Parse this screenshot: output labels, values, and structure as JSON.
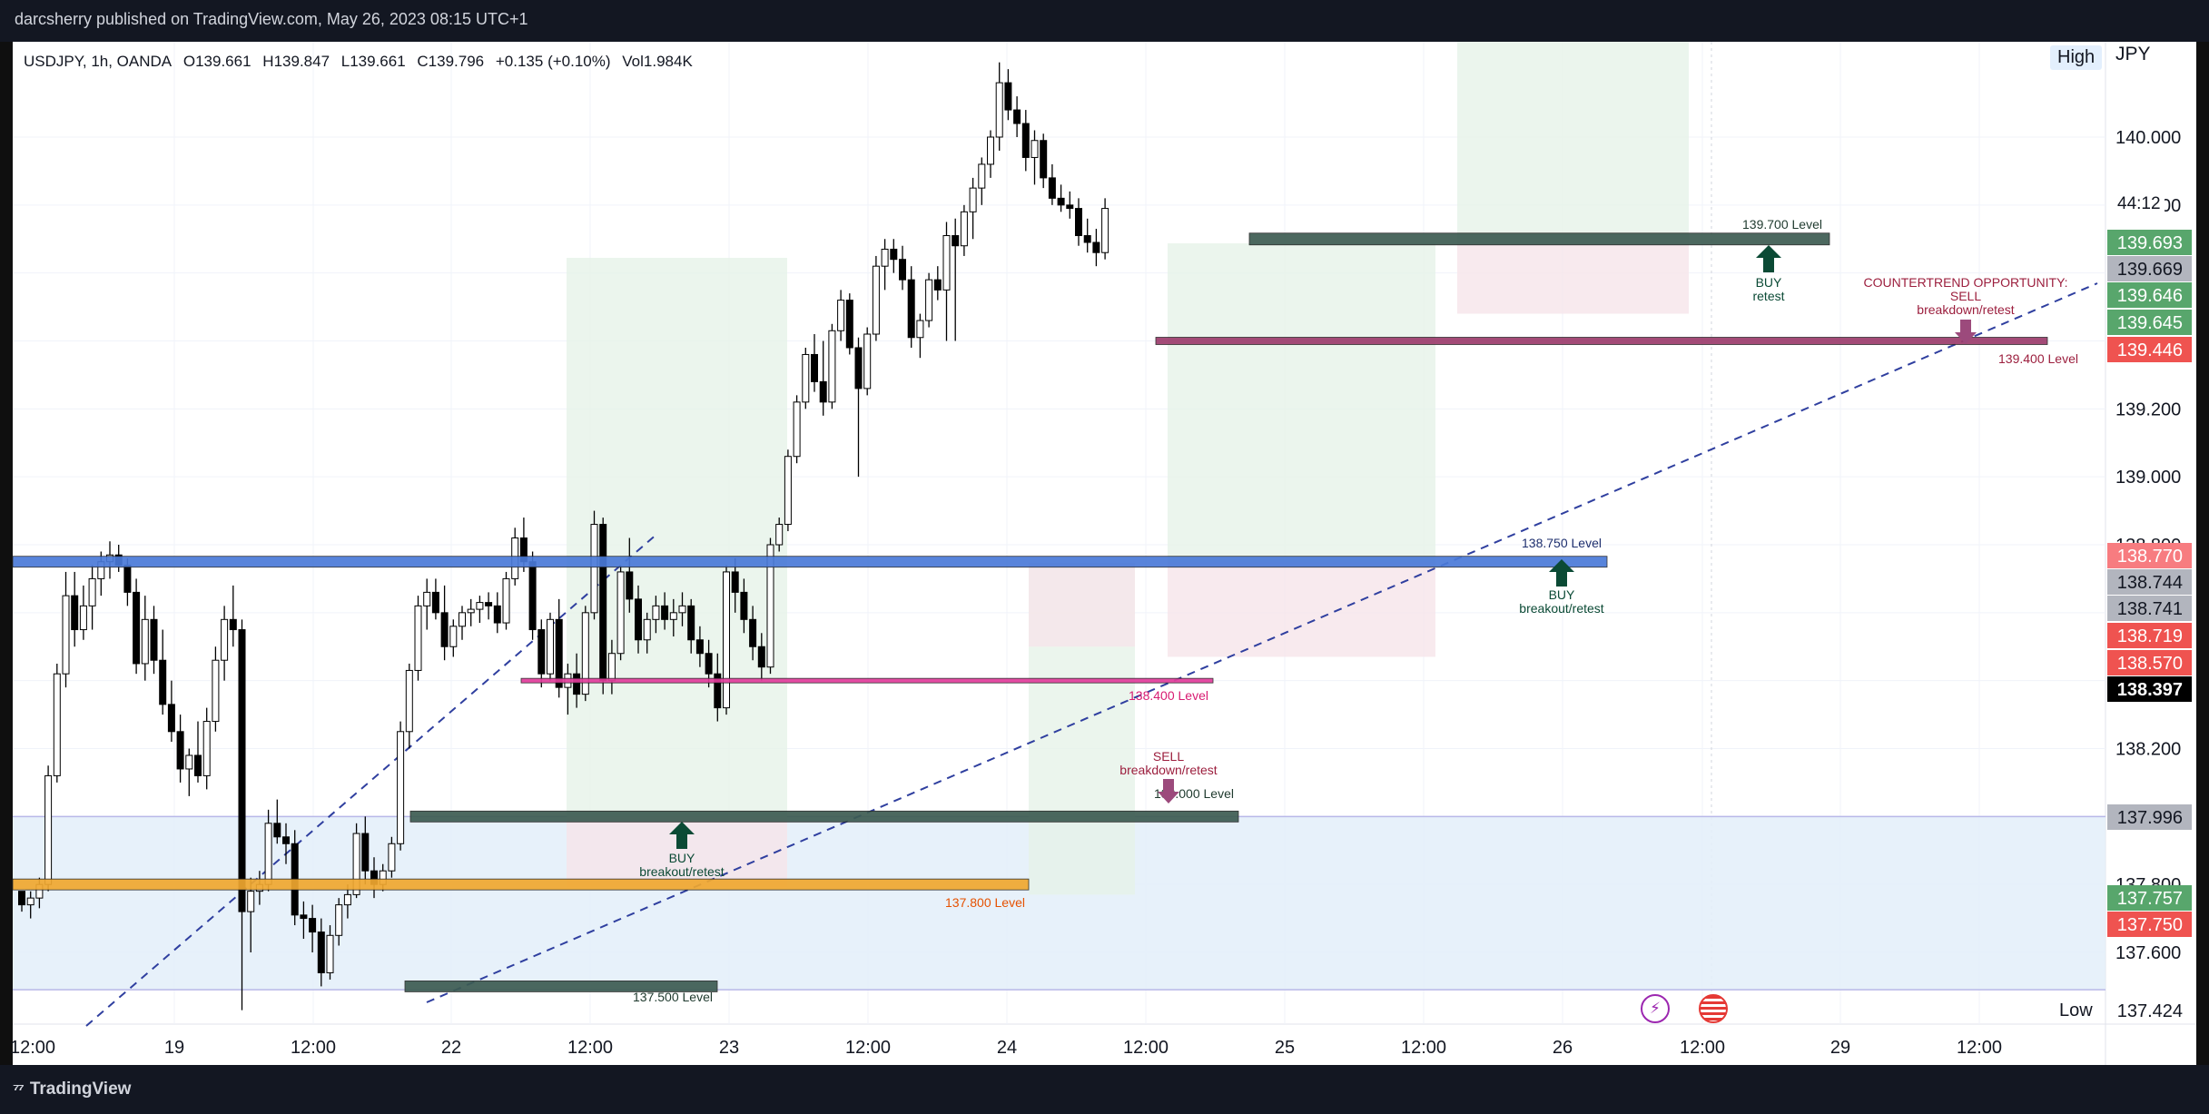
{
  "header": {
    "publisher_line": "darcsherry published on TradingView.com, May 26, 2023 08:15 UTC+1"
  },
  "legend": {
    "symbol": "USDJPY, 1h, OANDA",
    "open": "O139.661",
    "high": "H139.847",
    "low": "L139.661",
    "close": "C139.796",
    "change": "+0.135 (+0.10%)",
    "volume": "Vol1.984K"
  },
  "price_scale": {
    "currency": "JPY",
    "high_tag": "High",
    "low_tag": "Low",
    "countdown": "44:12"
  },
  "footer": {
    "brand": "TradingView"
  },
  "icons": [
    "lightning-icon",
    "us-flag-icon"
  ],
  "colors": {
    "up_candle": "#ffffff",
    "down_candle": "#000000",
    "blue_level": "#4a7ad8",
    "orange_level": "#f0a830",
    "magenta_level": "#e23d9c",
    "maroon_level": "#9c3c6c",
    "green_level": "#3d5c52",
    "arrow_green": "#0b4a35",
    "arrow_maroon": "#9c4a7c"
  },
  "chart_data": {
    "type": "candlestick",
    "symbol": "USDJPY",
    "timeframe": "1h",
    "ylim": [
      137.4,
      140.25
    ],
    "y_ticks": [
      137.6,
      137.8,
      138.0,
      138.2,
      138.4,
      138.6,
      138.8,
      139.0,
      139.2,
      139.4,
      139.6,
      139.8,
      140.0
    ],
    "y_tick_labels": [
      "137.600",
      "137.800",
      "",
      "138.200",
      "",
      "",
      "138.800",
      "139.000",
      "139.200",
      "",
      "",
      "139.800",
      "140.000"
    ],
    "x_tick_labels": [
      "12:00",
      "19",
      "12:00",
      "22",
      "12:00",
      "23",
      "12:00",
      "24",
      "12:00",
      "25",
      "12:00",
      "26",
      "12:00",
      "29",
      "12:00"
    ],
    "price_labels": [
      {
        "value": "139.693",
        "color": "#58a66c"
      },
      {
        "value": "139.669",
        "color": "#b2b5be"
      },
      {
        "value": "139.646",
        "color": "#58a66c"
      },
      {
        "value": "139.645",
        "color": "#58a66c"
      },
      {
        "value": "139.446",
        "color": "#ef5350"
      },
      {
        "value": "138.770",
        "color": "#f77c80"
      },
      {
        "value": "138.744",
        "color": "#b2b5be"
      },
      {
        "value": "138.741",
        "color": "#b2b5be"
      },
      {
        "value": "138.719",
        "color": "#ef5350"
      },
      {
        "value": "138.570",
        "color": "#ef5350"
      },
      {
        "value": "138.397",
        "color": "#000000"
      },
      {
        "value": "137.996",
        "color": "#b2b5be"
      },
      {
        "value": "137.757",
        "color": "#58a66c"
      },
      {
        "value": "137.750",
        "color": "#ef5350"
      },
      {
        "value": "137.424",
        "color": "#ffffff"
      }
    ],
    "levels": [
      {
        "name": "139.700 Level",
        "price": 139.7
      },
      {
        "name": "139.400 Level",
        "price": 139.4
      },
      {
        "name": "138.750 Level",
        "price": 138.75
      },
      {
        "name": "138.400 Level",
        "price": 138.4
      },
      {
        "name": "138.000 Level",
        "price": 138.0
      },
      {
        "name": "137.800 Level",
        "price": 137.8
      },
      {
        "name": "137.500 Level",
        "price": 137.5
      }
    ],
    "annotations": [
      {
        "title": "BUY",
        "subtitle": "retest"
      },
      {
        "title": "COUNTERTREND OPPORTUNITY:",
        "line2": "SELL",
        "subtitle": "breakdown/retest"
      },
      {
        "title": "BUY",
        "subtitle": "breakout/retest"
      },
      {
        "title": "SELL",
        "subtitle": "breakdown/retest"
      },
      {
        "title": "BUY",
        "subtitle": "breakout/retest"
      }
    ],
    "candles": [
      [
        137.78,
        137.76,
        137.72,
        137.74
      ],
      [
        137.74,
        137.78,
        137.7,
        137.76
      ],
      [
        137.76,
        137.82,
        137.73,
        137.8
      ],
      [
        137.8,
        138.15,
        137.78,
        138.12
      ],
      [
        138.12,
        138.45,
        138.1,
        138.42
      ],
      [
        138.42,
        138.72,
        138.38,
        138.65
      ],
      [
        138.65,
        138.72,
        138.5,
        138.55
      ],
      [
        138.55,
        138.68,
        138.52,
        138.62
      ],
      [
        138.62,
        138.74,
        138.55,
        138.7
      ],
      [
        138.7,
        138.78,
        138.65,
        138.75
      ],
      [
        138.75,
        138.81,
        138.7,
        138.77
      ],
      [
        138.77,
        138.8,
        138.72,
        138.74
      ],
      [
        138.74,
        138.76,
        138.62,
        138.66
      ],
      [
        138.66,
        138.7,
        138.42,
        138.45
      ],
      [
        138.45,
        138.65,
        138.4,
        138.58
      ],
      [
        138.58,
        138.62,
        138.42,
        138.46
      ],
      [
        138.46,
        138.55,
        138.3,
        138.33
      ],
      [
        138.33,
        138.4,
        138.22,
        138.25
      ],
      [
        138.25,
        138.3,
        138.1,
        138.14
      ],
      [
        138.14,
        138.2,
        138.06,
        138.18
      ],
      [
        138.18,
        138.28,
        138.1,
        138.12
      ],
      [
        138.12,
        138.32,
        138.08,
        138.28
      ],
      [
        138.28,
        138.5,
        138.25,
        138.46
      ],
      [
        138.46,
        138.62,
        138.4,
        138.58
      ],
      [
        138.58,
        138.68,
        138.5,
        138.55
      ],
      [
        138.55,
        138.58,
        137.43,
        137.72
      ],
      [
        137.72,
        137.82,
        137.6,
        137.78
      ],
      [
        137.78,
        137.84,
        137.74,
        137.8
      ],
      [
        137.8,
        138.02,
        137.78,
        137.98
      ],
      [
        137.98,
        138.05,
        137.92,
        137.94
      ],
      [
        137.94,
        137.98,
        137.86,
        137.92
      ],
      [
        137.92,
        137.96,
        137.68,
        137.71
      ],
      [
        137.71,
        137.75,
        137.64,
        137.7
      ],
      [
        137.7,
        137.74,
        137.6,
        137.66
      ],
      [
        137.66,
        137.7,
        137.5,
        137.54
      ],
      [
        137.54,
        137.68,
        137.52,
        137.65
      ],
      [
        137.65,
        137.76,
        137.62,
        137.74
      ],
      [
        137.74,
        137.8,
        137.7,
        137.77
      ],
      [
        137.77,
        137.98,
        137.76,
        137.95
      ],
      [
        137.95,
        138.0,
        137.8,
        137.84
      ],
      [
        137.84,
        137.88,
        137.76,
        137.8
      ],
      [
        137.8,
        137.86,
        137.78,
        137.84
      ],
      [
        137.84,
        137.94,
        137.82,
        137.92
      ],
      [
        137.92,
        138.28,
        137.9,
        138.25
      ],
      [
        138.25,
        138.45,
        138.2,
        138.43
      ],
      [
        138.43,
        138.65,
        138.4,
        138.62
      ],
      [
        138.62,
        138.7,
        138.55,
        138.66
      ],
      [
        138.66,
        138.7,
        138.58,
        138.6
      ],
      [
        138.6,
        138.68,
        138.46,
        138.5
      ],
      [
        138.5,
        138.58,
        138.47,
        138.56
      ],
      [
        138.56,
        138.62,
        138.52,
        138.6
      ],
      [
        138.6,
        138.64,
        138.56,
        138.61
      ],
      [
        138.61,
        138.65,
        138.57,
        138.63
      ],
      [
        138.63,
        138.66,
        138.58,
        138.62
      ],
      [
        138.62,
        138.66,
        138.54,
        138.57
      ],
      [
        138.57,
        138.72,
        138.55,
        138.7
      ],
      [
        138.7,
        138.85,
        138.68,
        138.82
      ],
      [
        138.82,
        138.88,
        138.72,
        138.75
      ],
      [
        138.75,
        138.78,
        138.52,
        138.55
      ],
      [
        138.55,
        138.58,
        138.38,
        138.42
      ],
      [
        138.42,
        138.6,
        138.4,
        138.58
      ],
      [
        138.58,
        138.64,
        138.35,
        138.38
      ],
      [
        138.38,
        138.45,
        138.3,
        138.42
      ],
      [
        138.42,
        138.48,
        138.32,
        138.36
      ],
      [
        138.36,
        138.62,
        138.34,
        138.6
      ],
      [
        138.6,
        138.9,
        138.58,
        138.86
      ],
      [
        138.86,
        138.88,
        138.36,
        138.4
      ],
      [
        138.4,
        138.52,
        138.36,
        138.48
      ],
      [
        138.48,
        138.74,
        138.46,
        138.72
      ],
      [
        138.72,
        138.82,
        138.6,
        138.64
      ],
      [
        138.64,
        138.68,
        138.48,
        138.52
      ],
      [
        138.52,
        138.6,
        138.48,
        138.58
      ],
      [
        138.58,
        138.65,
        138.54,
        138.62
      ],
      [
        138.62,
        138.66,
        138.55,
        138.58
      ],
      [
        138.58,
        138.64,
        138.53,
        138.6
      ],
      [
        138.6,
        138.66,
        138.56,
        138.62
      ],
      [
        138.62,
        138.64,
        138.48,
        138.52
      ],
      [
        138.52,
        138.56,
        138.44,
        138.48
      ],
      [
        138.48,
        138.52,
        138.38,
        138.42
      ],
      [
        138.42,
        138.48,
        138.28,
        138.32
      ],
      [
        138.32,
        138.74,
        138.3,
        138.72
      ],
      [
        138.72,
        138.76,
        138.6,
        138.66
      ],
      [
        138.66,
        138.7,
        138.54,
        138.58
      ],
      [
        138.58,
        138.62,
        138.46,
        138.5
      ],
      [
        138.5,
        138.54,
        138.4,
        138.44
      ],
      [
        138.44,
        138.82,
        138.42,
        138.8
      ],
      [
        138.8,
        138.88,
        138.78,
        138.86
      ],
      [
        138.86,
        139.08,
        138.84,
        139.06
      ],
      [
        139.06,
        139.24,
        139.04,
        139.22
      ],
      [
        139.22,
        139.38,
        139.2,
        139.36
      ],
      [
        139.36,
        139.42,
        139.25,
        139.28
      ],
      [
        139.28,
        139.4,
        139.18,
        139.22
      ],
      [
        139.22,
        139.45,
        139.2,
        139.43
      ],
      [
        139.43,
        139.55,
        139.4,
        139.52
      ],
      [
        139.52,
        139.54,
        139.36,
        139.38
      ],
      [
        139.38,
        139.41,
        139.0,
        139.26
      ],
      [
        139.26,
        139.44,
        139.24,
        139.42
      ],
      [
        139.42,
        139.65,
        139.4,
        139.62
      ],
      [
        139.62,
        139.7,
        139.55,
        139.67
      ],
      [
        139.67,
        139.7,
        139.6,
        139.64
      ],
      [
        139.64,
        139.68,
        139.55,
        139.58
      ],
      [
        139.58,
        139.62,
        139.38,
        139.41
      ],
      [
        139.41,
        139.48,
        139.35,
        139.46
      ],
      [
        139.46,
        139.6,
        139.44,
        139.58
      ],
      [
        139.58,
        139.62,
        139.52,
        139.55
      ],
      [
        139.55,
        139.75,
        139.4,
        139.71
      ],
      [
        139.71,
        139.76,
        139.4,
        139.68
      ],
      [
        139.68,
        139.8,
        139.65,
        139.78
      ],
      [
        139.78,
        139.88,
        139.7,
        139.85
      ],
      [
        139.85,
        139.94,
        139.8,
        139.92
      ],
      [
        139.92,
        140.02,
        139.88,
        140.0
      ],
      [
        140.0,
        140.22,
        139.96,
        140.16
      ],
      [
        140.16,
        140.2,
        140.05,
        140.08
      ],
      [
        140.08,
        140.12,
        140.0,
        140.04
      ],
      [
        140.04,
        140.08,
        139.9,
        139.94
      ],
      [
        139.94,
        140.02,
        139.86,
        139.99
      ],
      [
        139.99,
        140.01,
        139.85,
        139.88
      ],
      [
        139.88,
        139.92,
        139.8,
        139.82
      ],
      [
        139.82,
        139.86,
        139.78,
        139.8
      ],
      [
        139.8,
        139.84,
        139.76,
        139.79
      ],
      [
        139.79,
        139.82,
        139.68,
        139.71
      ],
      [
        139.71,
        139.76,
        139.66,
        139.69
      ],
      [
        139.69,
        139.73,
        139.62,
        139.66
      ],
      [
        139.66,
        139.82,
        139.64,
        139.79
      ]
    ]
  }
}
